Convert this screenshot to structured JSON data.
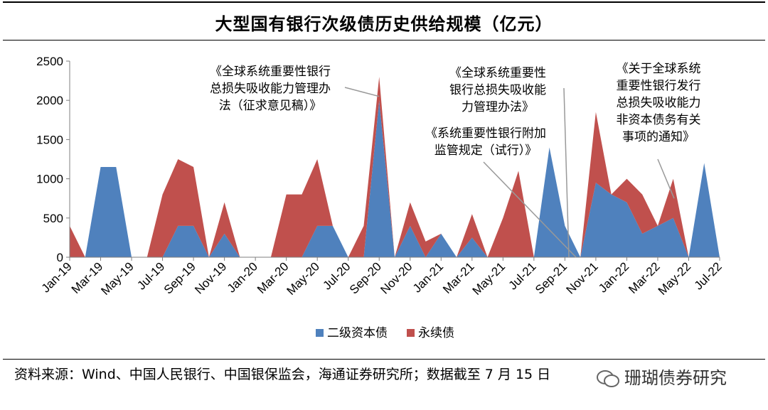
{
  "title": "大型国有银行次级债历史供给规模（亿元）",
  "source": "资料来源：Wind、中国人民银行、中国银保监会，海通证券研究所；数据截至 7 月 15 日",
  "watermark": "珊瑚债券研究",
  "chart_data": {
    "type": "area",
    "x": [
      "Jan-19",
      "Feb-19",
      "Mar-19",
      "Apr-19",
      "May-19",
      "Jun-19",
      "Jul-19",
      "Aug-19",
      "Sep-19",
      "Oct-19",
      "Nov-19",
      "Dec-19",
      "Jan-20",
      "Feb-20",
      "Mar-20",
      "Apr-20",
      "May-20",
      "Jun-20",
      "Jul-20",
      "Aug-20",
      "Sep-20",
      "Oct-20",
      "Nov-20",
      "Dec-20",
      "Jan-21",
      "Feb-21",
      "Mar-21",
      "Apr-21",
      "May-21",
      "Jun-21",
      "Jul-21",
      "Aug-21",
      "Sep-21",
      "Oct-21",
      "Nov-21",
      "Dec-21",
      "Jan-22",
      "Feb-22",
      "Mar-22",
      "Apr-22",
      "May-22",
      "Jun-22",
      "Jul-22"
    ],
    "tick_labels": [
      "Jan-19",
      "Mar-19",
      "May-19",
      "Jul-19",
      "Sep-19",
      "Nov-19",
      "Jan-20",
      "Mar-20",
      "May-20",
      "Jul-20",
      "Sep-20",
      "Nov-20",
      "Jan-21",
      "Mar-21",
      "May-21",
      "Jul-21",
      "Sep-21",
      "Nov-21",
      "Jan-22",
      "Mar-22",
      "May-22",
      "Jul-22"
    ],
    "stacked": true,
    "series": [
      {
        "name": "二级资本债",
        "color": "#4F81BD",
        "values": [
          0,
          0,
          1150,
          1150,
          0,
          0,
          0,
          400,
          400,
          0,
          300,
          0,
          0,
          0,
          0,
          0,
          400,
          400,
          0,
          0,
          2000,
          0,
          400,
          0,
          300,
          0,
          250,
          0,
          0,
          0,
          0,
          1400,
          400,
          0,
          950,
          800,
          700,
          300,
          400,
          500,
          0,
          1200,
          0
        ]
      },
      {
        "name": "永续债",
        "color": "#C0504D",
        "values": [
          400,
          0,
          0,
          0,
          0,
          0,
          800,
          850,
          750,
          0,
          400,
          0,
          0,
          0,
          800,
          800,
          850,
          0,
          0,
          400,
          300,
          0,
          300,
          200,
          0,
          0,
          300,
          0,
          500,
          1100,
          0,
          0,
          0,
          0,
          900,
          0,
          300,
          500,
          0,
          500,
          0,
          0,
          0
        ]
      }
    ],
    "ylim": [
      0,
      2500
    ],
    "yticks": [
      0,
      500,
      1000,
      1500,
      2000,
      2500
    ],
    "grid": false,
    "legend": "bottom",
    "annotations": [
      {
        "lines": [
          "《全球系统重要性银行",
          "总损失吸收能力管理办",
          "法（征求意见稿）》"
        ],
        "target": "Sep-20"
      },
      {
        "lines": [
          "《全球系统重要性",
          "银行总损失吸收能",
          "力管理办法》"
        ],
        "target": "Oct-21"
      },
      {
        "lines": [
          "《系统重要性银行附加",
          "监管规定（试行）》"
        ],
        "target": "Oct-21"
      },
      {
        "lines": [
          "《关于全球系统",
          "重要性银行发行",
          "总损失吸收能力",
          "非资本债务有关",
          "事项的通知》"
        ],
        "target": "Apr-22"
      }
    ]
  }
}
